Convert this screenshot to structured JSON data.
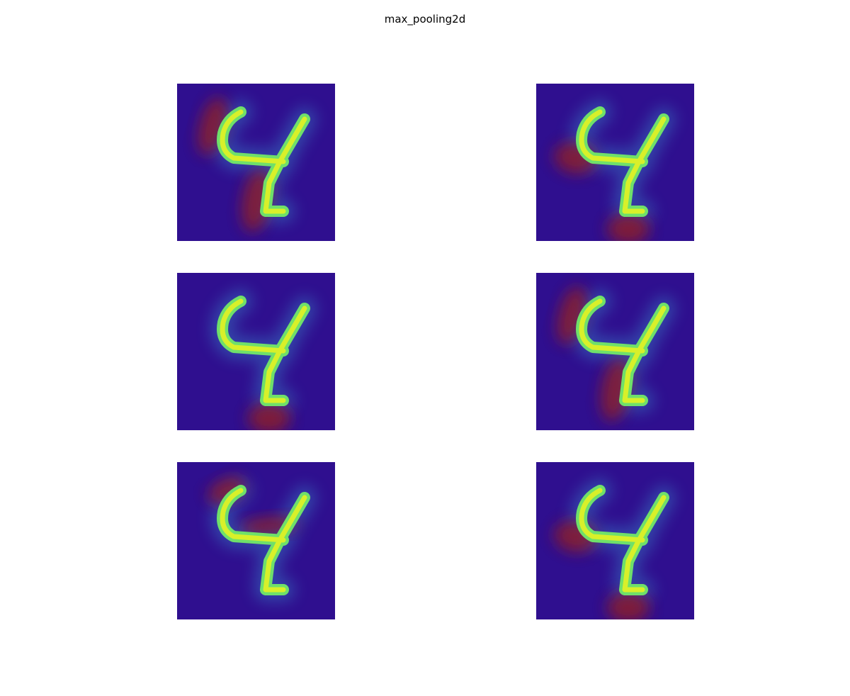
{
  "figure": {
    "title": "max_pooling2d"
  },
  "panels": [
    {
      "colormap": "jet",
      "background_color": "#2f0f8f",
      "hot_regions": [
        "upper-left-stroke",
        "lower-stem"
      ]
    },
    {
      "colormap": "jet",
      "background_color": "#2f0f8f",
      "hot_regions": [
        "left-bar",
        "bottom"
      ]
    },
    {
      "colormap": "jet",
      "background_color": "#2f0f8f",
      "hot_regions": [
        "bottom"
      ]
    },
    {
      "colormap": "jet",
      "background_color": "#2f0f8f",
      "hot_regions": [
        "upper-left-stroke",
        "lower-stem"
      ]
    },
    {
      "colormap": "jet",
      "background_color": "#2f0f8f",
      "hot_regions": [
        "top-left",
        "crossbar"
      ]
    },
    {
      "colormap": "jet",
      "background_color": "#2f0f8f",
      "hot_regions": [
        "left-bar",
        "bottom"
      ]
    }
  ],
  "colors": {
    "low": "#2f0f8f",
    "mid": "#3aa0d8",
    "stroke_high": "#d8f02a",
    "stroke_mid": "#6fe06a",
    "hot": "#8b1a2a"
  }
}
